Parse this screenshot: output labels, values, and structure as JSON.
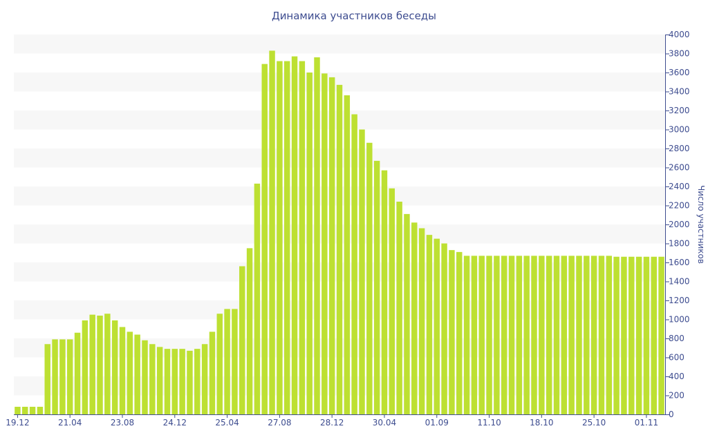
{
  "chart_data": {
    "type": "bar",
    "title": "Динамика участников беседы",
    "xlabel": "",
    "ylabel": "Число участников",
    "y_axis_side": "right",
    "ylim": [
      0,
      4000
    ],
    "ytick_step": 200,
    "grid": "alternating horizontal bands",
    "legend": "none",
    "x_tick_labels": [
      {
        "index": 0,
        "label": "19.12"
      },
      {
        "index": 7,
        "label": "21.04"
      },
      {
        "index": 14,
        "label": "23.08"
      },
      {
        "index": 21,
        "label": "24.12"
      },
      {
        "index": 28,
        "label": "25.04"
      },
      {
        "index": 35,
        "label": "27.08"
      },
      {
        "index": 42,
        "label": "28.12"
      },
      {
        "index": 49,
        "label": "30.04"
      },
      {
        "index": 56,
        "label": "01.09"
      },
      {
        "index": 63,
        "label": "11.10"
      },
      {
        "index": 70,
        "label": "18.10"
      },
      {
        "index": 77,
        "label": "25.10"
      },
      {
        "index": 84,
        "label": "01.11"
      }
    ],
    "values": [
      80,
      80,
      80,
      80,
      740,
      790,
      790,
      790,
      860,
      990,
      1050,
      1040,
      1060,
      990,
      920,
      870,
      840,
      780,
      740,
      710,
      690,
      690,
      690,
      670,
      690,
      740,
      870,
      1060,
      1110,
      1110,
      1560,
      1750,
      2430,
      3690,
      3830,
      3720,
      3720,
      3770,
      3720,
      3600,
      3760,
      3590,
      3550,
      3470,
      3360,
      3160,
      3000,
      2860,
      2670,
      2570,
      2380,
      2240,
      2110,
      2020,
      1960,
      1890,
      1850,
      1800,
      1730,
      1710,
      1670,
      1670,
      1670,
      1670,
      1670,
      1670,
      1670,
      1670,
      1670,
      1670,
      1670,
      1670,
      1670,
      1670,
      1670,
      1670,
      1670,
      1670,
      1670,
      1670,
      1660,
      1660,
      1660,
      1660,
      1660,
      1660,
      1660
    ],
    "colors": {
      "bar": "#bde032",
      "band": "#f7f7f7",
      "axis": "#3d4c8f",
      "text": "#3d4c8f"
    }
  }
}
